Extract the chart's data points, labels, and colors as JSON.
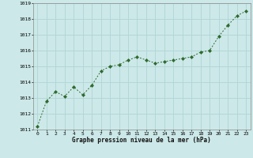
{
  "x": [
    0,
    1,
    2,
    3,
    4,
    5,
    6,
    7,
    8,
    9,
    10,
    11,
    12,
    13,
    14,
    15,
    16,
    17,
    18,
    19,
    20,
    21,
    22,
    23
  ],
  "y": [
    1011.2,
    1012.8,
    1013.4,
    1013.1,
    1013.7,
    1013.2,
    1013.8,
    1014.7,
    1015.0,
    1015.1,
    1015.4,
    1015.6,
    1015.4,
    1015.2,
    1015.3,
    1015.4,
    1015.5,
    1015.6,
    1015.9,
    1016.0,
    1016.9,
    1017.6,
    1018.2,
    1018.5
  ],
  "ylim": [
    1011,
    1019
  ],
  "yticks": [
    1011,
    1012,
    1013,
    1014,
    1015,
    1016,
    1017,
    1018,
    1019
  ],
  "xticks": [
    0,
    1,
    2,
    3,
    4,
    5,
    6,
    7,
    8,
    9,
    10,
    11,
    12,
    13,
    14,
    15,
    16,
    17,
    18,
    19,
    20,
    21,
    22,
    23
  ],
  "xlabel": "Graphe pression niveau de la mer (hPa)",
  "line_color": "#2d6a2d",
  "marker": "D",
  "marker_size": 2.0,
  "bg_color": "#cce8e8",
  "grid_color": "#b0d4d4",
  "spine_color": "#888888"
}
